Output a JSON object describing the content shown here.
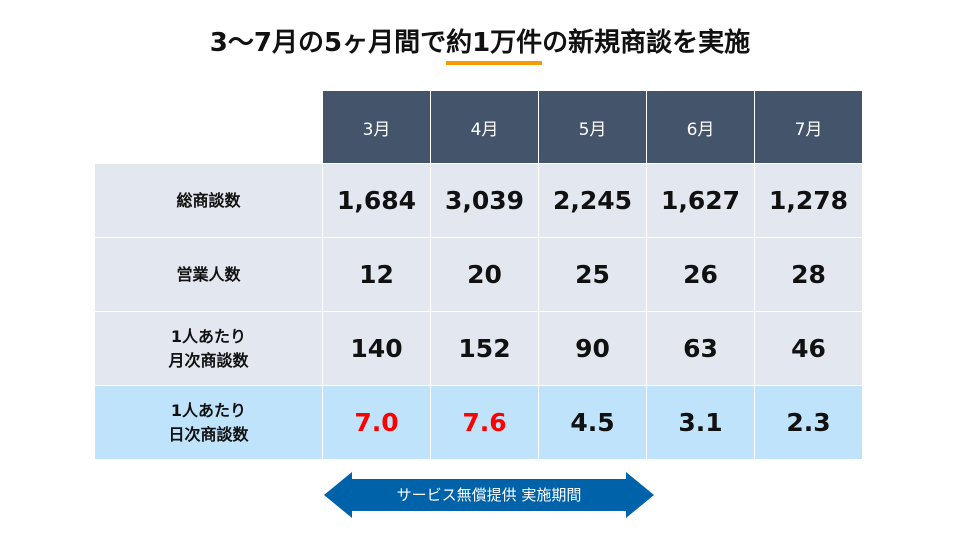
{
  "title": {
    "pre": "3〜7月の5ヶ月間で",
    "highlight": "約1万件",
    "post": "の新規商談を実施",
    "highlight_color": "#f59a00"
  },
  "table": {
    "columns": [
      "3月",
      "4月",
      "5月",
      "6月",
      "7月"
    ],
    "rows": [
      {
        "label": "総商談数",
        "values": [
          "1,684",
          "3,039",
          "2,245",
          "1,627",
          "1,278"
        ]
      },
      {
        "label": "営業人数",
        "values": [
          "12",
          "20",
          "25",
          "26",
          "28"
        ]
      },
      {
        "label_line1": "1人あたり",
        "label_line2": "月次商談数",
        "values": [
          "140",
          "152",
          "90",
          "63",
          "46"
        ]
      },
      {
        "label_line1": "1人あたり",
        "label_line2": "日次商談数",
        "values": [
          "7.0",
          "7.6",
          "4.5",
          "3.1",
          "2.3"
        ],
        "highlighted_values": [
          "7.0",
          "7.6"
        ]
      }
    ],
    "header_color": "#44546a",
    "highlight_row_color": "#bfe3fb",
    "highlight_text_color": "#ff0000"
  },
  "arrow": {
    "label": "サービス無償提供 実施期間",
    "color": "#0062a8",
    "icon": "double-headed-arrow"
  }
}
